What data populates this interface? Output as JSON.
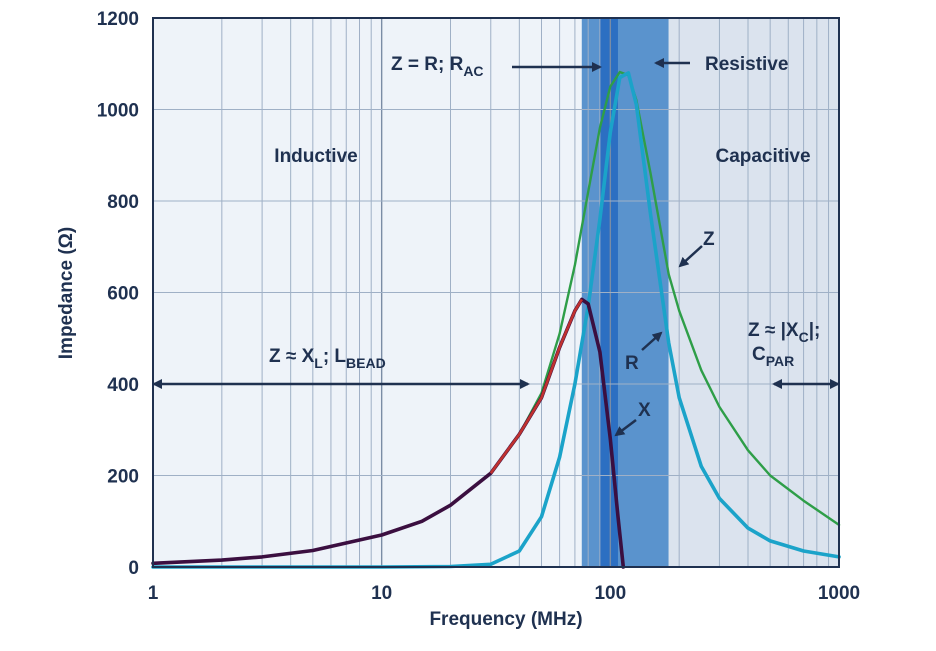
{
  "chart_data": {
    "type": "line",
    "xlabel": "Frequency (MHz)",
    "ylabel": "Impedance (Ω)",
    "xscale": "log",
    "xlim": [
      1,
      1000
    ],
    "ylim": [
      0,
      1200
    ],
    "x_ticks": [
      "1",
      "10",
      "100",
      "1000"
    ],
    "y_ticks": [
      "0",
      "200",
      "400",
      "600",
      "800",
      "1000",
      "1200"
    ],
    "grid": true,
    "regions": [
      {
        "name": "Inductive",
        "from": 1,
        "to": 75
      },
      {
        "name": "Resistive",
        "from": 75,
        "to": 180
      },
      {
        "name": "Capacitive",
        "from": 180,
        "to": 1000
      }
    ],
    "resonance_band": [
      90,
      108
    ],
    "series": [
      {
        "name": "Z",
        "color": "#2e9e48",
        "x": [
          1,
          2,
          3,
          5,
          10,
          15,
          20,
          30,
          40,
          50,
          60,
          70,
          80,
          90,
          100,
          110,
          120,
          130,
          150,
          180,
          200,
          250,
          300,
          400,
          500,
          700,
          1000
        ],
        "y": [
          8,
          15,
          22,
          36,
          70,
          100,
          135,
          205,
          290,
          380,
          510,
          660,
          820,
          960,
          1050,
          1082,
          1075,
          1020,
          860,
          640,
          560,
          430,
          350,
          255,
          200,
          145,
          92
        ]
      },
      {
        "name": "R",
        "color": "#1ba3c9",
        "x": [
          1,
          10,
          20,
          30,
          40,
          50,
          60,
          70,
          80,
          90,
          100,
          110,
          120,
          130,
          150,
          180,
          200,
          250,
          300,
          400,
          500,
          700,
          1000
        ],
        "y": [
          0,
          0,
          1,
          6,
          35,
          110,
          240,
          400,
          570,
          760,
          950,
          1070,
          1080,
          1010,
          770,
          490,
          370,
          220,
          150,
          85,
          57,
          35,
          22
        ]
      },
      {
        "name": "X",
        "color": "#3b0f40",
        "x": [
          1,
          2,
          3,
          5,
          10,
          15,
          20,
          30,
          40,
          50,
          60,
          70,
          75,
          80,
          90,
          100,
          108,
          114
        ],
        "y": [
          8,
          15,
          22,
          36,
          70,
          100,
          135,
          205,
          290,
          370,
          480,
          560,
          585,
          575,
          470,
          280,
          110,
          0
        ]
      }
    ],
    "annotations": {
      "inductive": "Inductive",
      "capacitive": "Capacitive",
      "resistive": "Resistive",
      "z_eq_r_main": "Z = R; R",
      "z_eq_r_sub": "AC",
      "z_xl_main": "Z ≈ X",
      "z_xl_sub1": "L",
      "z_xl_mid": "; L",
      "z_xl_sub2": "BEAD",
      "z_xc_main": "Z ≈ |X",
      "z_xc_sub": "C",
      "z_xc_end": "|;",
      "cpar_main": "C",
      "cpar_sub": "PAR",
      "label_z": "Z",
      "label_r": "R",
      "label_x": "X"
    }
  }
}
